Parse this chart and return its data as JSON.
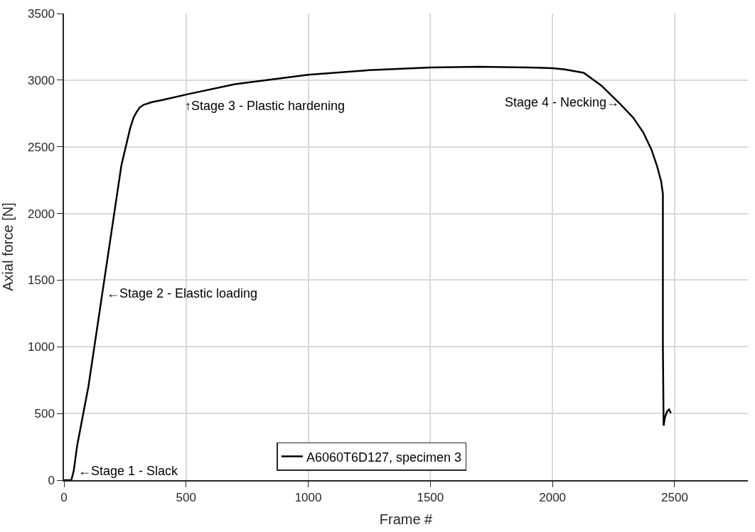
{
  "chart_data": {
    "type": "line",
    "xlabel": "Frame #",
    "ylabel": "Axial force [N]",
    "xlim": [
      0,
      2800
    ],
    "xticks": [
      0,
      500,
      1000,
      1500,
      2000,
      2500
    ],
    "ylim": [
      0,
      3500
    ],
    "yticks": [
      0,
      500,
      1000,
      1500,
      2000,
      2500,
      3000,
      3500
    ],
    "grid": true,
    "legend": "bottom",
    "marker": "none",
    "line_style": "solid",
    "series": [
      {
        "name": "A6060T6D127, specimen 3",
        "color": "#000000",
        "x": [
          0,
          30,
          40,
          54,
          100,
          145,
          190,
          235,
          271,
          285,
          297,
          310,
          326,
          360,
          400,
          500,
          700,
          1000,
          1250,
          1500,
          1700,
          1900,
          2000,
          2050,
          2128,
          2200,
          2277,
          2330,
          2371,
          2405,
          2428,
          2445,
          2452,
          2452,
          2455,
          2460,
          2469,
          2477,
          2485
        ],
        "values": [
          0,
          0,
          70,
          260,
          702,
          1255,
          1808,
          2361,
          2640,
          2720,
          2760,
          2795,
          2815,
          2835,
          2850,
          2892,
          2970,
          3040,
          3075,
          3095,
          3100,
          3095,
          3090,
          3080,
          3055,
          2960,
          2822,
          2720,
          2610,
          2480,
          2356,
          2240,
          2146,
          1000,
          409,
          470,
          514,
          530,
          503
        ]
      }
    ],
    "annotations": [
      {
        "text": "←Stage 1 - Slack",
        "x": 40,
        "y": 70
      },
      {
        "text": "←Stage 2 - Elastic loading",
        "x": 158,
        "y": 1400
      },
      {
        "text": "↑Stage 3 - Plastic hardening",
        "x": 500,
        "y": 2892
      },
      {
        "text": "Stage 4 - Necking→",
        "x": 2286,
        "y": 2833
      }
    ]
  }
}
